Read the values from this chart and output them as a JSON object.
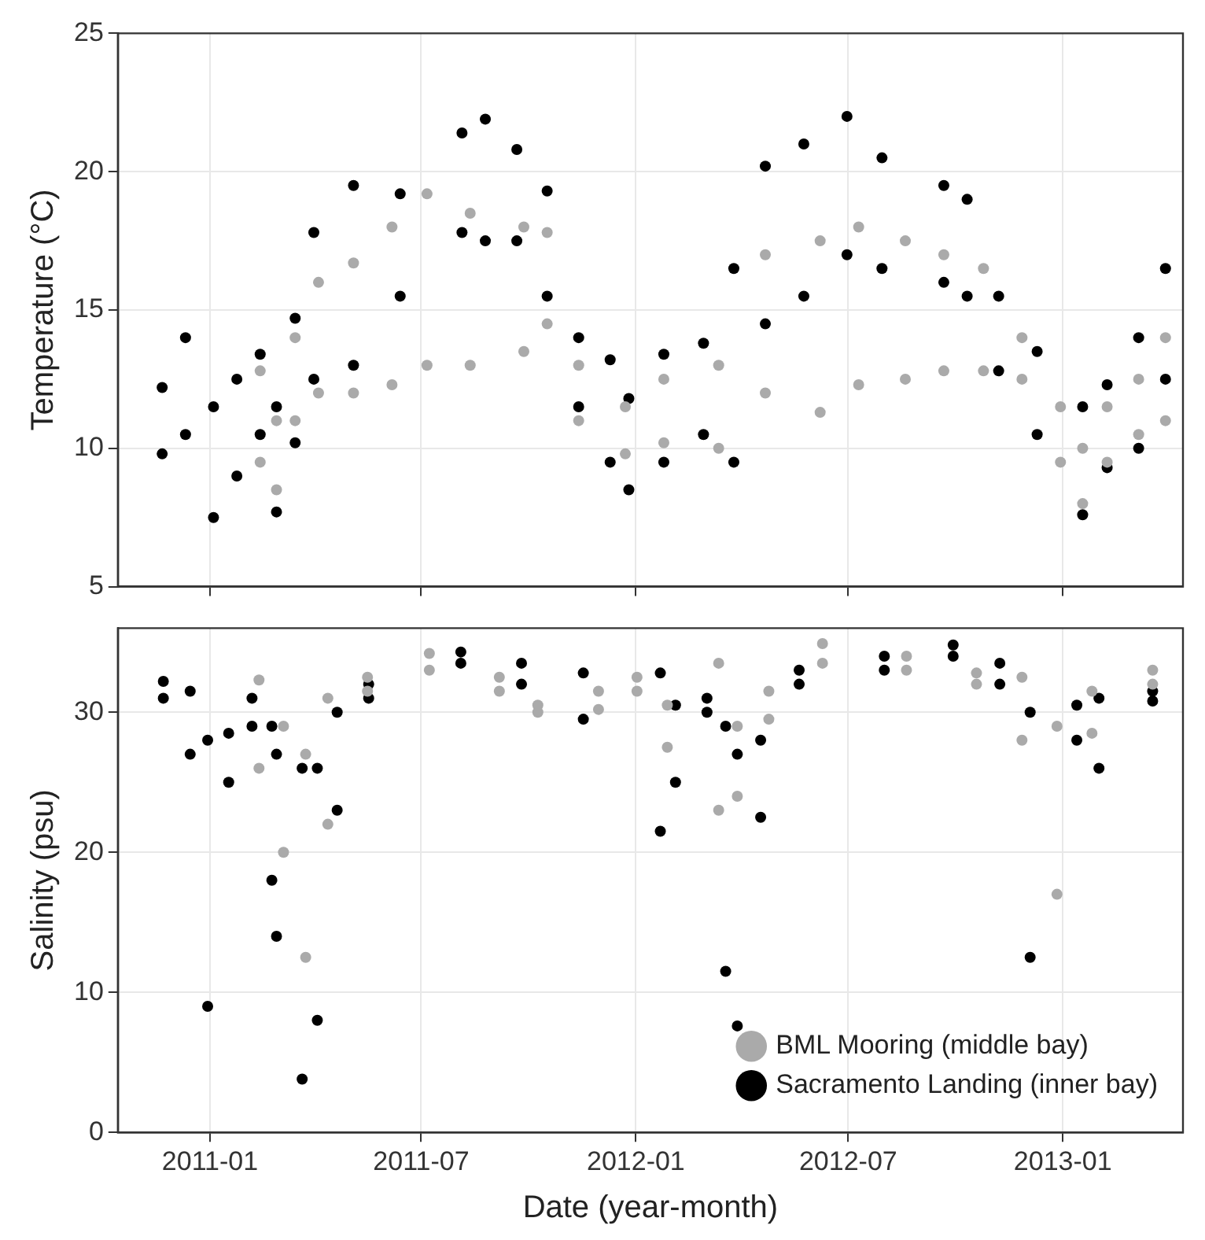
{
  "chart_data": [
    {
      "type": "scatter",
      "ylabel": "Temperature (°C)",
      "xlim": [
        "2010-10-14",
        "2013-04-14"
      ],
      "xticks": [
        "2011-01",
        "2011-07",
        "2012-01",
        "2012-07",
        "2013-01"
      ],
      "ylim": [
        5,
        25
      ],
      "yticks": [
        5,
        10,
        15,
        20,
        25
      ],
      "grid": true,
      "tick_labels": "y",
      "marker": "circle",
      "series": [
        {
          "color": "#aaaaaa",
          "x": [
            "2011-02-13",
            "2011-02-13",
            "2011-02-27",
            "2011-02-27",
            "2011-03-15",
            "2011-03-15",
            "2011-04-04",
            "2011-04-04",
            "2011-05-04",
            "2011-05-04",
            "2011-06-06",
            "2011-06-06",
            "2011-07-06",
            "2011-07-06",
            "2011-08-12",
            "2011-08-12",
            "2011-09-27",
            "2011-09-27",
            "2011-10-17",
            "2011-10-17",
            "2011-11-13",
            "2011-11-13",
            "2011-12-23",
            "2011-12-23",
            "2012-01-25",
            "2012-01-25",
            "2012-03-12",
            "2012-03-12",
            "2012-04-21",
            "2012-04-21",
            "2012-06-07",
            "2012-06-07",
            "2012-07-10",
            "2012-07-10",
            "2012-08-19",
            "2012-08-19",
            "2012-09-21",
            "2012-09-21",
            "2012-10-25",
            "2012-10-25",
            "2012-11-27",
            "2012-11-27",
            "2012-12-30",
            "2012-12-30",
            "2013-01-18",
            "2013-01-18",
            "2013-02-08",
            "2013-02-08",
            "2013-03-07",
            "2013-03-07",
            "2013-03-30",
            "2013-03-30"
          ],
          "values": [
            12.8,
            9.5,
            11.0,
            8.5,
            14.0,
            11.0,
            16.0,
            12.0,
            16.7,
            12.0,
            18.0,
            12.3,
            19.2,
            13.0,
            18.5,
            13.0,
            18.0,
            13.5,
            17.8,
            14.5,
            13.0,
            11.0,
            11.5,
            9.8,
            12.5,
            10.2,
            13.0,
            10.0,
            17.0,
            12.0,
            17.5,
            11.3,
            18.0,
            12.3,
            17.5,
            12.5,
            17.0,
            12.8,
            16.5,
            12.8,
            14.0,
            12.5,
            11.5,
            9.5,
            10.0,
            8.0,
            11.5,
            9.5,
            12.5,
            10.5,
            14.0,
            11.0
          ]
        },
        {
          "color": "#000000",
          "x": [
            "2010-11-21",
            "2010-11-21",
            "2010-12-11",
            "2010-12-11",
            "2011-01-04",
            "2011-01-04",
            "2011-01-24",
            "2011-01-24",
            "2011-02-13",
            "2011-02-13",
            "2011-02-27",
            "2011-02-27",
            "2011-03-15",
            "2011-03-15",
            "2011-03-31",
            "2011-03-31",
            "2011-05-04",
            "2011-05-04",
            "2011-06-13",
            "2011-06-13",
            "2011-08-05",
            "2011-08-05",
            "2011-08-25",
            "2011-08-25",
            "2011-09-21",
            "2011-09-21",
            "2011-10-17",
            "2011-10-17",
            "2011-11-13",
            "2011-11-13",
            "2011-12-10",
            "2011-12-10",
            "2011-12-26",
            "2011-12-26",
            "2012-01-25",
            "2012-01-25",
            "2012-02-28",
            "2012-02-28",
            "2012-03-25",
            "2012-03-25",
            "2012-04-21",
            "2012-04-21",
            "2012-05-24",
            "2012-05-24",
            "2012-06-30",
            "2012-06-30",
            "2012-07-30",
            "2012-07-30",
            "2012-09-21",
            "2012-09-21",
            "2012-10-11",
            "2012-10-11",
            "2012-11-07",
            "2012-11-07",
            "2012-12-10",
            "2012-12-10",
            "2013-01-18",
            "2013-01-18",
            "2013-02-08",
            "2013-02-08",
            "2013-03-07",
            "2013-03-07",
            "2013-03-30",
            "2013-03-30"
          ],
          "values": [
            12.2,
            9.8,
            14.0,
            10.5,
            11.5,
            7.5,
            12.5,
            9.0,
            13.4,
            10.5,
            11.5,
            7.7,
            14.7,
            10.2,
            17.8,
            12.5,
            19.5,
            13.0,
            19.2,
            15.5,
            21.4,
            17.8,
            21.9,
            17.5,
            20.8,
            17.5,
            19.3,
            15.5,
            14.0,
            11.5,
            13.2,
            9.5,
            11.8,
            8.5,
            13.4,
            9.5,
            13.8,
            10.5,
            16.5,
            9.5,
            20.2,
            14.5,
            21.0,
            15.5,
            22.0,
            17.0,
            20.5,
            16.5,
            19.5,
            16.0,
            19.0,
            15.5,
            15.5,
            12.8,
            13.5,
            10.5,
            11.5,
            7.6,
            12.3,
            9.3,
            14.0,
            10.0,
            16.5,
            12.5
          ]
        }
      ]
    },
    {
      "type": "scatter",
      "xlabel": "Date (year-month)",
      "ylabel": "Salinity (psu)",
      "xlim": [
        "2010-10-14",
        "2013-04-14"
      ],
      "xticks": [
        "2011-01",
        "2011-07",
        "2012-01",
        "2012-07",
        "2013-01"
      ],
      "ylim": [
        0,
        36
      ],
      "yticks": [
        0,
        10,
        20,
        30
      ],
      "grid": true,
      "legend": "bottom right",
      "marker": "circle",
      "series": [
        {
          "name": "BML Mooring (middle bay)",
          "color": "#aaaaaa",
          "x": [
            "2011-02-12",
            "2011-02-12",
            "2011-03-05",
            "2011-03-05",
            "2011-03-24",
            "2011-03-24",
            "2011-04-12",
            "2011-04-12",
            "2011-05-16",
            "2011-05-16",
            "2011-07-08",
            "2011-07-08",
            "2011-09-06",
            "2011-09-06",
            "2011-10-09",
            "2011-10-09",
            "2011-11-30",
            "2011-11-30",
            "2012-01-02",
            "2012-01-02",
            "2012-01-28",
            "2012-01-28",
            "2012-03-12",
            "2012-03-12",
            "2012-03-28",
            "2012-03-28",
            "2012-04-24",
            "2012-04-24",
            "2012-06-09",
            "2012-06-09",
            "2012-08-20",
            "2012-08-20",
            "2012-10-19",
            "2012-10-19",
            "2012-11-27",
            "2012-11-27",
            "2012-12-27",
            "2012-12-27",
            "2013-01-26",
            "2013-01-26",
            "2013-03-19",
            "2013-03-19"
          ],
          "values": [
            32.3,
            26,
            29,
            20,
            27,
            12.5,
            31,
            22,
            32.5,
            31.5,
            34.2,
            33,
            32.5,
            31.5,
            30.5,
            30,
            31.5,
            30.2,
            32.5,
            31.5,
            30.5,
            27.5,
            33.5,
            23,
            29,
            24,
            31.5,
            29.5,
            34.9,
            33.5,
            34,
            33,
            32.8,
            32,
            32.5,
            28,
            29,
            17,
            31.5,
            28.5,
            33,
            32
          ]
        },
        {
          "name": "Sacramento Landing (inner bay)",
          "color": "#000000",
          "x": [
            "2010-11-22",
            "2010-11-22",
            "2010-12-15",
            "2010-12-15",
            "2010-12-30",
            "2010-12-30",
            "2011-01-17",
            "2011-01-17",
            "2011-02-06",
            "2011-02-06",
            "2011-02-23",
            "2011-02-23",
            "2011-02-27",
            "2011-02-27",
            "2011-03-21",
            "2011-03-21",
            "2011-04-03",
            "2011-04-03",
            "2011-04-20",
            "2011-04-20",
            "2011-05-17",
            "2011-05-17",
            "2011-08-04",
            "2011-08-04",
            "2011-09-25",
            "2011-09-25",
            "2011-11-17",
            "2011-11-17",
            "2012-01-22",
            "2012-01-22",
            "2012-02-04",
            "2012-02-04",
            "2012-03-02",
            "2012-03-02",
            "2012-03-18",
            "2012-03-18",
            "2012-03-28",
            "2012-03-28",
            "2012-04-17",
            "2012-04-17",
            "2012-05-20",
            "2012-05-20",
            "2012-08-01",
            "2012-08-01",
            "2012-09-29",
            "2012-09-29",
            "2012-11-08",
            "2012-11-08",
            "2012-12-04",
            "2012-12-04",
            "2013-01-13",
            "2013-01-13",
            "2013-02-01",
            "2013-02-01",
            "2013-03-19",
            "2013-03-19"
          ],
          "values": [
            32.2,
            31.0,
            31.5,
            27,
            28,
            9.0,
            28.5,
            25,
            31.0,
            29,
            29,
            18,
            27,
            14,
            26,
            3.8,
            26,
            8,
            30,
            23,
            32,
            31,
            34.3,
            33.5,
            33.5,
            32,
            32.8,
            29.5,
            32.8,
            21.5,
            30.5,
            25,
            31,
            30,
            29,
            11.5,
            27,
            7.6,
            28,
            22.5,
            33,
            32,
            34,
            33,
            34.8,
            34,
            33.5,
            32,
            30,
            12.5,
            30.5,
            28,
            31,
            26,
            31.5,
            30.8
          ]
        }
      ]
    }
  ]
}
